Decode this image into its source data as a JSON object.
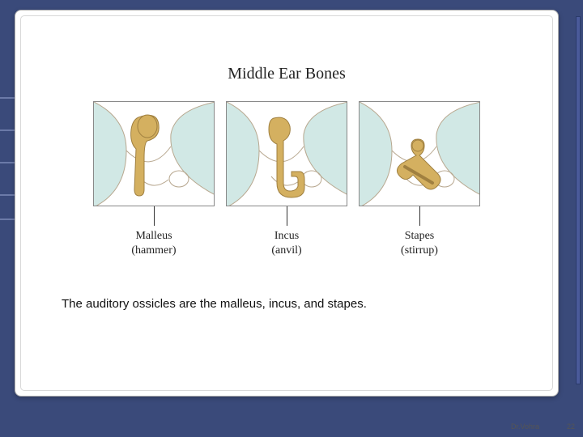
{
  "slide": {
    "title": "Middle Ear Bones",
    "caption": "The auditory ossicles are the malleus, incus, and stapes.",
    "author": "Dr.Vohra",
    "page_num": "22",
    "colors": {
      "page_bg": "#3a4a7a",
      "card_bg": "#ffffff",
      "card_border": "#b0b0b0",
      "panel_border": "#888888",
      "bone_fill": "#d4b060",
      "bone_shade": "#a08040",
      "cavity_bg": "#cce5e2",
      "tissue_outline": "#b8a890"
    },
    "panels": [
      {
        "label_main": "Malleus",
        "label_sub": "(hammer)",
        "bone": "malleus"
      },
      {
        "label_main": "Incus",
        "label_sub": "(anvil)",
        "bone": "incus"
      },
      {
        "label_main": "Stapes",
        "label_sub": "(stirrup)",
        "bone": "stapes"
      }
    ],
    "bg_lines_y": [
      120,
      160,
      200,
      240,
      270
    ],
    "bg_line_width": 24
  }
}
